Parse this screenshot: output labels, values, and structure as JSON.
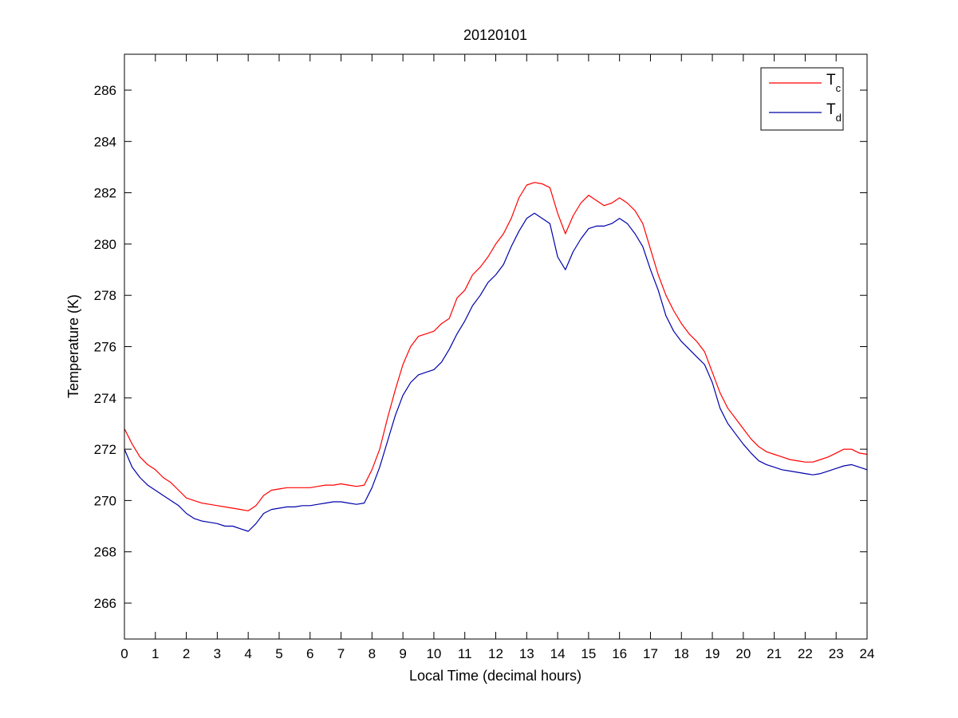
{
  "chart_data": {
    "type": "line",
    "title": "20120101",
    "xlabel": "Local Time (decimal hours)",
    "ylabel": "Temperature (K)",
    "xlim": [
      0,
      24
    ],
    "ylim": [
      264.6,
      287.4
    ],
    "xticks": [
      0,
      1,
      2,
      3,
      4,
      5,
      6,
      7,
      8,
      9,
      10,
      11,
      12,
      13,
      14,
      15,
      16,
      17,
      18,
      19,
      20,
      21,
      22,
      23,
      24
    ],
    "yticks": [
      266,
      268,
      270,
      272,
      274,
      276,
      278,
      280,
      282,
      284,
      286
    ],
    "grid": false,
    "legend_position": "top-right",
    "series": [
      {
        "name": "T",
        "subscript": "c",
        "color": "#ff0000",
        "x": [
          0,
          0.25,
          0.5,
          0.75,
          1,
          1.25,
          1.5,
          1.75,
          2,
          2.25,
          2.5,
          2.75,
          3,
          3.25,
          3.5,
          3.75,
          4,
          4.25,
          4.5,
          4.75,
          5,
          5.25,
          5.5,
          5.75,
          6,
          6.25,
          6.5,
          6.75,
          7,
          7.25,
          7.5,
          7.75,
          8,
          8.25,
          8.5,
          8.75,
          9,
          9.25,
          9.5,
          9.75,
          10,
          10.25,
          10.5,
          10.75,
          11,
          11.25,
          11.5,
          11.75,
          12,
          12.25,
          12.5,
          12.75,
          13,
          13.25,
          13.5,
          13.75,
          14,
          14.25,
          14.5,
          14.75,
          15,
          15.25,
          15.5,
          15.75,
          16,
          16.25,
          16.5,
          16.75,
          17,
          17.25,
          17.5,
          17.75,
          18,
          18.25,
          18.5,
          18.75,
          19,
          19.25,
          19.5,
          19.75,
          20,
          20.25,
          20.5,
          20.75,
          21,
          21.25,
          21.5,
          21.75,
          22,
          22.25,
          22.5,
          22.75,
          23,
          23.25,
          23.5,
          23.75,
          24
        ],
        "values": [
          272.8,
          272.2,
          271.7,
          271.4,
          271.2,
          270.9,
          270.7,
          270.4,
          270.1,
          270.0,
          269.9,
          269.85,
          269.8,
          269.75,
          269.7,
          269.65,
          269.6,
          269.8,
          270.2,
          270.4,
          270.45,
          270.5,
          270.5,
          270.5,
          270.5,
          270.55,
          270.6,
          270.6,
          270.65,
          270.6,
          270.55,
          270.6,
          271.2,
          272.0,
          273.2,
          274.3,
          275.3,
          276.0,
          276.4,
          276.5,
          276.6,
          276.9,
          277.1,
          277.9,
          278.2,
          278.8,
          279.1,
          279.5,
          280.0,
          280.4,
          281.0,
          281.8,
          282.3,
          282.4,
          282.35,
          282.2,
          281.2,
          280.4,
          281.1,
          281.6,
          281.9,
          281.7,
          281.5,
          281.6,
          281.8,
          281.6,
          281.3,
          280.8,
          279.8,
          278.8,
          278.0,
          277.4,
          276.9,
          276.5,
          276.2,
          275.8,
          275.0,
          274.2,
          273.6,
          273.2,
          272.8,
          272.4,
          272.1,
          271.9,
          271.8,
          271.7,
          271.6,
          271.55,
          271.5,
          271.5,
          271.6,
          271.7,
          271.85,
          272.0,
          272.0,
          271.85,
          271.8
        ]
      },
      {
        "name": "T",
        "subscript": "d",
        "color": "#0000aa",
        "x": [
          0,
          0.25,
          0.5,
          0.75,
          1,
          1.25,
          1.5,
          1.75,
          2,
          2.25,
          2.5,
          2.75,
          3,
          3.25,
          3.5,
          3.75,
          4,
          4.25,
          4.5,
          4.75,
          5,
          5.25,
          5.5,
          5.75,
          6,
          6.25,
          6.5,
          6.75,
          7,
          7.25,
          7.5,
          7.75,
          8,
          8.25,
          8.5,
          8.75,
          9,
          9.25,
          9.5,
          9.75,
          10,
          10.25,
          10.5,
          10.75,
          11,
          11.25,
          11.5,
          11.75,
          12,
          12.25,
          12.5,
          12.75,
          13,
          13.25,
          13.5,
          13.75,
          14,
          14.25,
          14.5,
          14.75,
          15,
          15.25,
          15.5,
          15.75,
          16,
          16.25,
          16.5,
          16.75,
          17,
          17.25,
          17.5,
          17.75,
          18,
          18.25,
          18.5,
          18.75,
          19,
          19.25,
          19.5,
          19.75,
          20,
          20.25,
          20.5,
          20.75,
          21,
          21.25,
          21.5,
          21.75,
          22,
          22.25,
          22.5,
          22.75,
          23,
          23.25,
          23.5,
          23.75,
          24
        ],
        "values": [
          272.0,
          271.3,
          270.9,
          270.6,
          270.4,
          270.2,
          270.0,
          269.8,
          269.5,
          269.3,
          269.2,
          269.15,
          269.1,
          269.0,
          269.0,
          268.9,
          268.8,
          269.1,
          269.5,
          269.65,
          269.7,
          269.75,
          269.75,
          269.8,
          269.8,
          269.85,
          269.9,
          269.95,
          269.95,
          269.9,
          269.85,
          269.9,
          270.5,
          271.3,
          272.3,
          273.3,
          274.1,
          274.6,
          274.9,
          275.0,
          275.1,
          275.4,
          275.9,
          276.5,
          277.0,
          277.6,
          278.0,
          278.5,
          278.8,
          279.2,
          279.9,
          280.5,
          281.0,
          281.2,
          281.0,
          280.8,
          279.5,
          279.0,
          279.7,
          280.2,
          280.6,
          280.7,
          280.7,
          280.8,
          281.0,
          280.8,
          280.4,
          279.9,
          279.0,
          278.2,
          277.2,
          276.6,
          276.2,
          275.9,
          275.6,
          275.3,
          274.6,
          273.6,
          273.0,
          272.6,
          272.2,
          271.85,
          271.55,
          271.4,
          271.3,
          271.2,
          271.15,
          271.1,
          271.05,
          271.0,
          271.05,
          271.15,
          271.25,
          271.35,
          271.4,
          271.3,
          271.2
        ]
      }
    ]
  }
}
